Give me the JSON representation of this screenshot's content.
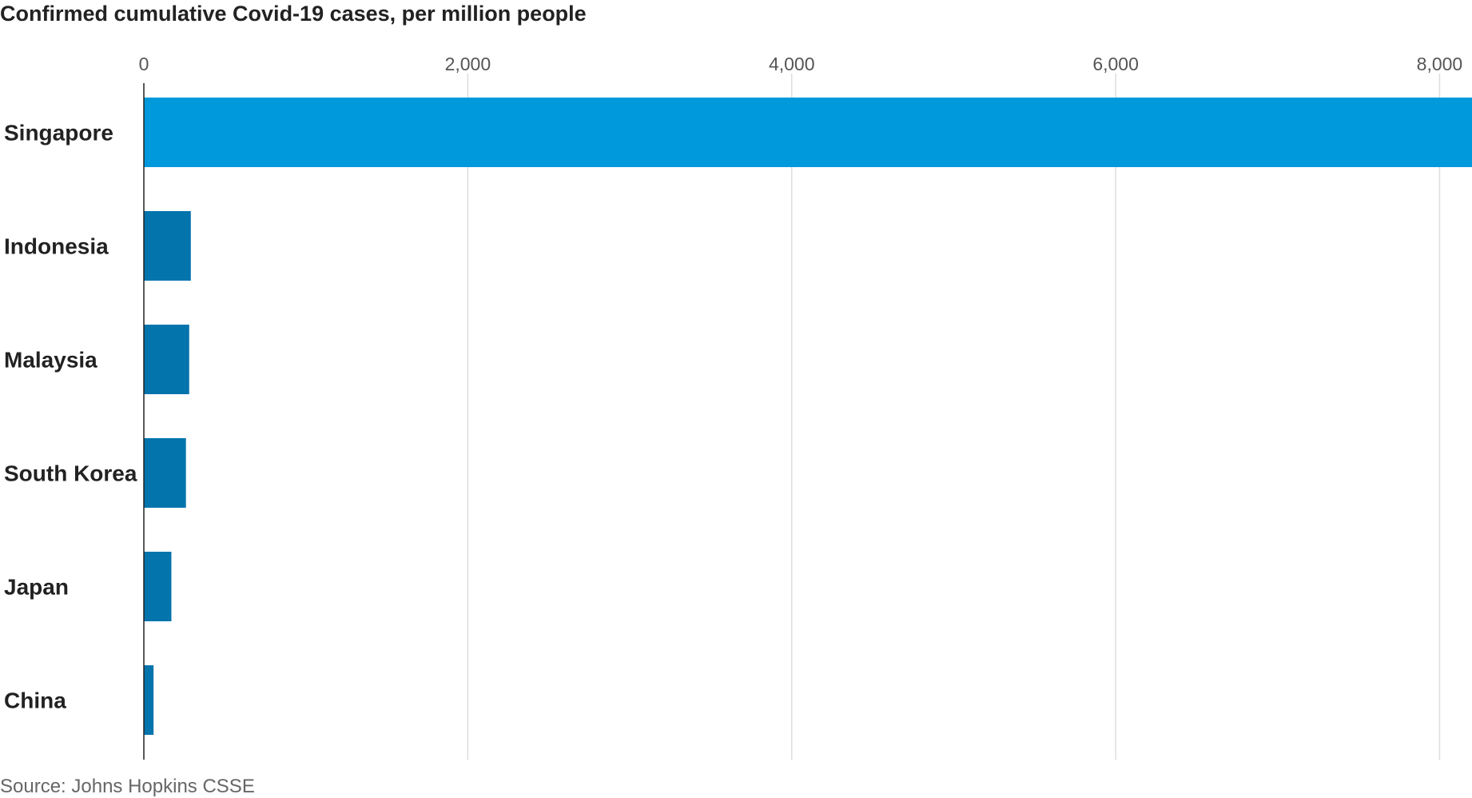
{
  "chart_data": {
    "type": "bar",
    "orientation": "horizontal",
    "title": "Confirmed cumulative Covid-19 cases, per million people",
    "categories": [
      "Singapore",
      "Indonesia",
      "Malaysia",
      "South Korea",
      "Japan",
      "China"
    ],
    "values": [
      8200,
      290,
      280,
      260,
      170,
      60
    ],
    "xlim": [
      0,
      8200
    ],
    "ticks": [
      0,
      2000,
      4000,
      6000,
      8000
    ],
    "tick_labels": [
      "0",
      "2,000",
      "4,000",
      "6,000",
      "8,000"
    ],
    "xlabel": "",
    "ylabel": "",
    "grid": true,
    "colors": {
      "highlight": "#0099dc",
      "bar": "#0474ad",
      "grid": "#dddddd",
      "axis": "#222222"
    },
    "highlight_category": "Singapore",
    "source": "Source: Johns Hopkins CSSE"
  }
}
